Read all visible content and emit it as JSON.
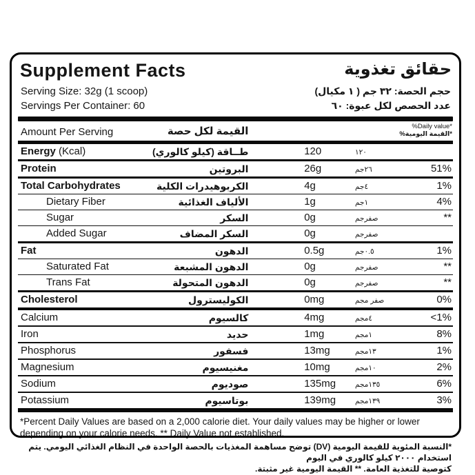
{
  "title": {
    "en": "Supplement Facts",
    "ar": "حقائق تغذوية"
  },
  "serving": {
    "size_en": "Serving Size: 32g (1 scoop)",
    "size_ar": "حجم الحصة: ٣٢ جم ( ١ مكيال)",
    "count_en": "Servings Per Container: 60",
    "count_ar": "عدد الحصص لكل عبوة: ٦٠"
  },
  "header": {
    "amount_en": "Amount Per Serving",
    "amount_ar": "القيمة لكل حصة",
    "dv_en": "%Daily value*",
    "dv_ar": "*القيمة اليومية%"
  },
  "rows": [
    {
      "en": "Energy",
      "en2": " (Kcal)",
      "ar": "طــاقة (كيلو كالوري)",
      "val_en": "120",
      "val_ar": "١٢٠",
      "dv": ""
    },
    {
      "en": "Protein",
      "ar": "البروتين",
      "val_en": "26g",
      "val_ar": "٢٦جم",
      "dv": "51%"
    },
    {
      "en": "Total Carbohydrates",
      "ar": "الكربوهيدرات الكلية",
      "val_en": "4g",
      "val_ar": "٤جم",
      "dv": "1%"
    },
    {
      "en": "Dietary Fiber",
      "ar": "الألياف الغذائية",
      "val_en": "1g",
      "val_ar": "١جم",
      "dv": "4%"
    },
    {
      "en": "Sugar",
      "ar": "السكر",
      "val_en": "0g",
      "val_ar": "صفرجم",
      "dv": "**"
    },
    {
      "en": "Added Sugar",
      "ar": "السكر المضاف",
      "val_en": "0g",
      "val_ar": "صفرجم",
      "dv": ""
    },
    {
      "en": "Fat",
      "ar": "الدهون",
      "val_en": "0.5g",
      "val_ar": "٠.٥جم",
      "dv": "1%"
    },
    {
      "en": "Saturated Fat",
      "ar": "الدهون المشبعة",
      "val_en": "0g",
      "val_ar": "صفرجم",
      "dv": "**"
    },
    {
      "en": "Trans Fat",
      "ar": "الدهون المتحولة",
      "val_en": "0g",
      "val_ar": "صفرجم",
      "dv": "**"
    },
    {
      "en": "Cholesterol",
      "ar": "الكوليسترول",
      "val_en": "0mg",
      "val_ar": "صفر مجم",
      "dv": "0%"
    },
    {
      "en": "Calcium",
      "ar": "كالسيوم",
      "val_en": "4mg",
      "val_ar": "٤مجم",
      "dv": "<1%"
    },
    {
      "en": "Iron",
      "ar": "حديد",
      "val_en": "1mg",
      "val_ar": "١مجم",
      "dv": "8%"
    },
    {
      "en": "Phosphorus",
      "ar": "فسفور",
      "val_en": "13mg",
      "val_ar": "١٣مجم",
      "dv": "1%"
    },
    {
      "en": "Magnesium",
      "ar": "مغنيسيوم",
      "val_en": "10mg",
      "val_ar": "١٠مجم",
      "dv": "2%"
    },
    {
      "en": "Sodium",
      "ar": "صوديوم",
      "val_en": "135mg",
      "val_ar": "١٣٥مجم",
      "dv": "6%"
    },
    {
      "en": "Potassium",
      "ar": "بوتاسيوم",
      "val_en": "139mg",
      "val_ar": "١٣٩مجم",
      "dv": "3%"
    }
  ],
  "footnotes": {
    "en": "*Percent Daily Values are based on a 2,000 calorie diet. Your daily values may be higher or lower depending on your calorie needs. ** Daily Value not established.",
    "ar_1": "*النسبة المئوية للقيمة اليومية (DV) توضح مساهمة المغذيات بالحصة الواحدة في النظام الغذائي اليومي. يتم استخدام ٢٠٠٠ كيلو كالوري في اليوم",
    "ar_2": "كتوصية للتغذية العامة. ** القيمة اليومية غير مثبتة."
  }
}
